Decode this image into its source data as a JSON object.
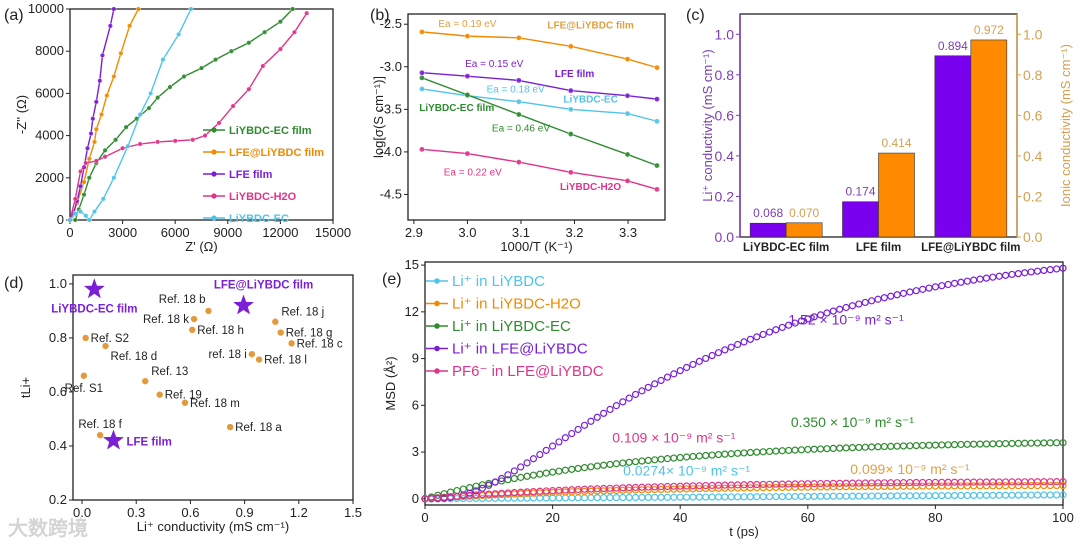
{
  "colors": {
    "purple": "#7a1fd6",
    "orange": "#f08a00",
    "green": "#2e8b2e",
    "pink": "#e0338a",
    "cyan": "#4fc3e8",
    "bar_purple": "#7a00f0",
    "bar_orange": "#ff8a00",
    "label_orange": "#e0a040",
    "axis_purple": "#7b3fb0",
    "axis_orange": "#d4a050"
  },
  "watermark": "大数跨境",
  "chart_data": [
    {
      "panel": "(a)",
      "type": "line",
      "xlabel": "Z' (Ω)",
      "ylabel": "-Z'' (Ω)",
      "xlim": [
        0,
        15000
      ],
      "ylim": [
        0,
        10000
      ],
      "xticks": [
        0,
        3000,
        6000,
        9000,
        12000,
        15000
      ],
      "yticks": [
        0,
        2000,
        4000,
        6000,
        8000,
        10000
      ],
      "legend_position": "lower-right",
      "series": [
        {
          "name": "LiYBDC-EC film",
          "color": "green",
          "points": [
            [
              300,
              0
            ],
            [
              500,
              500
            ],
            [
              800,
              1200
            ],
            [
              1100,
              2000
            ],
            [
              1500,
              2700
            ],
            [
              2000,
              3300
            ],
            [
              2600,
              3800
            ],
            [
              3200,
              4400
            ],
            [
              3800,
              4800
            ],
            [
              4500,
              5300
            ],
            [
              5000,
              5800
            ],
            [
              5700,
              6300
            ],
            [
              6500,
              6800
            ],
            [
              7500,
              7200
            ],
            [
              8300,
              7600
            ],
            [
              9200,
              8000
            ],
            [
              10200,
              8400
            ],
            [
              11100,
              8900
            ],
            [
              12000,
              9400
            ],
            [
              12700,
              10000
            ]
          ]
        },
        {
          "name": "LFE@LiYBDC film",
          "color": "orange",
          "points": [
            [
              0,
              0
            ],
            [
              400,
              800
            ],
            [
              800,
              1800
            ],
            [
              1100,
              2900
            ],
            [
              1400,
              3700
            ],
            [
              1500,
              4300
            ],
            [
              1800,
              5000
            ],
            [
              2100,
              5900
            ],
            [
              2500,
              6800
            ],
            [
              2900,
              7900
            ],
            [
              3400,
              9200
            ],
            [
              3900,
              10000
            ]
          ]
        },
        {
          "name": "LFE film",
          "color": "purple",
          "points": [
            [
              0,
              0
            ],
            [
              200,
              300
            ],
            [
              400,
              900
            ],
            [
              600,
              1600
            ],
            [
              800,
              2500
            ],
            [
              1000,
              3400
            ],
            [
              1200,
              4100
            ],
            [
              1300,
              4800
            ],
            [
              1500,
              5600
            ],
            [
              1700,
              6600
            ],
            [
              1850,
              7800
            ],
            [
              2300,
              9200
            ],
            [
              2500,
              10000
            ]
          ]
        },
        {
          "name": "LiYBDC-H2O",
          "color": "pink",
          "points": [
            [
              0,
              0
            ],
            [
              300,
              1000
            ],
            [
              600,
              2300
            ],
            [
              900,
              2700
            ],
            [
              1500,
              2800
            ],
            [
              2000,
              3000
            ],
            [
              3000,
              3400
            ],
            [
              4000,
              3600
            ],
            [
              5000,
              3700
            ],
            [
              6000,
              3750
            ],
            [
              7000,
              3800
            ],
            [
              7700,
              4000
            ],
            [
              8500,
              4600
            ],
            [
              9300,
              5400
            ],
            [
              10200,
              6200
            ],
            [
              11000,
              7300
            ],
            [
              12000,
              8100
            ],
            [
              12800,
              8900
            ],
            [
              13500,
              9800
            ]
          ]
        },
        {
          "name": "LiYBDC-EC",
          "color": "cyan",
          "points": [
            [
              0,
              0
            ],
            [
              300,
              300
            ],
            [
              600,
              400
            ],
            [
              900,
              200
            ],
            [
              1100,
              0
            ],
            [
              1400,
              400
            ],
            [
              1900,
              1000
            ],
            [
              2500,
              2000
            ],
            [
              3300,
              3500
            ],
            [
              4000,
              5000
            ],
            [
              4600,
              6000
            ],
            [
              5300,
              7600
            ],
            [
              6200,
              8800
            ],
            [
              6900,
              10000
            ]
          ]
        }
      ]
    },
    {
      "panel": "(b)",
      "type": "line",
      "xlabel": "1000/T (K⁻¹)",
      "ylabel": "log[σ(S cm⁻¹)]",
      "xlim": [
        2.889,
        3.369
      ],
      "ylim": [
        -4.8,
        -2.38
      ],
      "xticks": [
        2.9,
        3.0,
        3.1,
        3.2,
        3.3
      ],
      "yticks": [
        -2.5,
        -3.0,
        -3.5,
        -4.0,
        -4.5
      ],
      "x": [
        2.915,
        3.0,
        3.096,
        3.193,
        3.299,
        3.354
      ],
      "series": [
        {
          "name": "LFE@LiYBDC film",
          "color": "orange",
          "values": [
            -2.59,
            -2.64,
            -2.66,
            -2.76,
            -2.91,
            -3.01
          ]
        },
        {
          "name": "LFE film",
          "color": "purple",
          "values": [
            -3.07,
            -3.11,
            -3.16,
            -3.28,
            -3.34,
            -3.38
          ]
        },
        {
          "name": "LiYBDC-EC",
          "color": "cyan",
          "values": [
            -3.26,
            -3.34,
            -3.41,
            -3.5,
            -3.55,
            -3.64
          ]
        },
        {
          "name": "LiYBDC-EC film",
          "color": "green",
          "values": [
            -3.13,
            -3.33,
            -3.56,
            -3.79,
            -4.03,
            -4.16
          ]
        },
        {
          "name": "LiYBDC-H2O",
          "color": "pink",
          "values": [
            -3.97,
            -4.02,
            -4.12,
            -4.24,
            -4.34,
            -4.44
          ]
        }
      ],
      "annotations": [
        {
          "text": "Ea = 0.19 eV",
          "color": "label_orange",
          "at": [
            3.0,
            -2.53
          ]
        },
        {
          "text": "LFE@LiYBDC film",
          "color": "label_orange",
          "at": [
            3.23,
            -2.55
          ],
          "bold": true
        },
        {
          "text": "Ea = 0.15 eV",
          "color": "purple",
          "at": [
            3.05,
            -3.0
          ]
        },
        {
          "text": "LFE film",
          "color": "purple",
          "at": [
            3.2,
            -3.12
          ],
          "bold": true
        },
        {
          "text": "Ea = 0.18 eV",
          "color": "cyan",
          "at": [
            3.09,
            -3.3
          ]
        },
        {
          "text": "LiYBDC-EC",
          "color": "cyan",
          "at": [
            3.23,
            -3.42
          ],
          "bold": true
        },
        {
          "text": "LiYBDC-EC film",
          "color": "green",
          "at": [
            2.98,
            -3.52
          ],
          "bold": true
        },
        {
          "text": "Ea = 0.46 eV",
          "color": "green",
          "at": [
            3.1,
            -3.76
          ]
        },
        {
          "text": "Ea = 0.22 eV",
          "color": "pink",
          "at": [
            3.01,
            -4.28
          ]
        },
        {
          "text": "LiYBDC-H2O",
          "color": "pink",
          "at": [
            3.23,
            -4.45
          ],
          "bold": true
        }
      ]
    },
    {
      "panel": "(c)",
      "type": "bar",
      "categories": [
        "LiYBDC-EC film",
        "LFE film",
        "LFE@LiYBDC film"
      ],
      "ylabel": "Li⁺ conductivity (mS cm⁻¹)",
      "y2label": "Ionic conductivity (mS cm⁻¹)",
      "ylim": [
        0,
        1.1
      ],
      "yticks": [
        0.0,
        0.2,
        0.4,
        0.6,
        0.8,
        1.0
      ],
      "series": [
        {
          "name": "Li⁺ conductivity",
          "color": "bar_purple",
          "label_color": "axis_purple",
          "values": [
            0.068,
            0.174,
            0.894
          ],
          "labels": [
            "0.068",
            "0.174",
            "0.894"
          ]
        },
        {
          "name": "Ionic conductivity",
          "color": "bar_orange",
          "label_color": "axis_orange",
          "values": [
            0.07,
            0.414,
            0.972
          ],
          "labels": [
            "0.070",
            "0.414",
            "0.972"
          ]
        }
      ]
    },
    {
      "panel": "(d)",
      "type": "scatter",
      "xlabel": "Li⁺ conductivity (mS cm⁻¹)",
      "ylabel": "tLi+",
      "xlim": [
        -0.05,
        1.5
      ],
      "ylim": [
        0.2,
        1.033
      ],
      "xticks": [
        0.0,
        0.3,
        0.6,
        0.9,
        1.2,
        1.5
      ],
      "yticks": [
        0.2,
        0.4,
        0.6,
        0.8,
        1.0
      ],
      "refs": [
        {
          "label": "Ref. S2",
          "x": 0.02,
          "y": 0.8,
          "pos": "right"
        },
        {
          "label": "Ref. 18 d",
          "x": 0.13,
          "y": 0.77,
          "pos": "below-right"
        },
        {
          "label": "Ref. S1",
          "x": 0.01,
          "y": 0.66,
          "pos": "below"
        },
        {
          "label": "Ref. 13",
          "x": 0.35,
          "y": 0.64,
          "pos": "above-right"
        },
        {
          "label": "Ref. 19",
          "x": 0.43,
          "y": 0.59,
          "pos": "right"
        },
        {
          "label": "Ref. 18 m",
          "x": 0.57,
          "y": 0.56,
          "pos": "right"
        },
        {
          "label": "Ref. 18 f",
          "x": 0.1,
          "y": 0.44,
          "pos": "above"
        },
        {
          "label": "Ref. 18 a",
          "x": 0.82,
          "y": 0.47,
          "pos": "right"
        },
        {
          "label": "Ref. 18 b",
          "x": 0.7,
          "y": 0.9,
          "pos": "above-left"
        },
        {
          "label": "Ref. 18 k",
          "x": 0.62,
          "y": 0.87,
          "pos": "left"
        },
        {
          "label": "Ref. 18 h",
          "x": 0.61,
          "y": 0.83,
          "pos": "right"
        },
        {
          "label": "ref. 18 i",
          "x": 0.94,
          "y": 0.74,
          "pos": "left"
        },
        {
          "label": "Ref. 18 l",
          "x": 0.98,
          "y": 0.72,
          "pos": "right"
        },
        {
          "label": "Ref. 18 j",
          "x": 1.07,
          "y": 0.86,
          "pos": "above-right"
        },
        {
          "label": "Ref. 18 g",
          "x": 1.1,
          "y": 0.82,
          "pos": "right"
        },
        {
          "label": "Ref. 18 c",
          "x": 1.16,
          "y": 0.78,
          "pos": "right"
        }
      ],
      "stars": [
        {
          "label": "LiYBDC-EC film",
          "x": 0.068,
          "y": 0.98,
          "pos": "below"
        },
        {
          "label": "LFE@LiYBDC film",
          "x": 0.894,
          "y": 0.92,
          "pos": "above"
        },
        {
          "label": "LFE film",
          "x": 0.174,
          "y": 0.42,
          "pos": "right"
        }
      ]
    },
    {
      "panel": "(e)",
      "type": "line",
      "xlabel": "t (ps)",
      "ylabel": "MSD (Å²)",
      "xlim": [
        0,
        100
      ],
      "ylim": [
        -0.4,
        15.2
      ],
      "xticks": [
        0,
        20,
        40,
        60,
        80,
        100
      ],
      "yticks": [
        0,
        3,
        6,
        9,
        12,
        15
      ],
      "legend_position": "top-left",
      "series": [
        {
          "name": "Li⁺ in LiYBDC",
          "color": "cyan",
          "final": 0.25,
          "shape": "linear"
        },
        {
          "name": "Li⁺ in LiYBDC-H2O",
          "color": "orange",
          "final": 0.85,
          "shape": "sat"
        },
        {
          "name": "Li⁺ in LiYBDC-EC",
          "color": "green",
          "final": 3.6,
          "shape": "sat"
        },
        {
          "name": "Li⁺ in LFE@LiYBDC",
          "color": "purple",
          "final": 14.8,
          "shape": "sigmoid"
        },
        {
          "name": "PF6⁻ in LFE@LiYBDC",
          "color": "pink",
          "final": 1.1,
          "shape": "sat"
        }
      ],
      "annotations": [
        {
          "text": "1.52 × 10⁻⁹ m² s⁻¹",
          "color": "purple",
          "at": [
            66,
            11.2
          ]
        },
        {
          "text": "0.350 × 10⁻⁹ m² s⁻¹",
          "color": "green",
          "at": [
            67,
            4.6
          ]
        },
        {
          "text": "0.109 × 10⁻⁹ m² s⁻¹",
          "color": "pink",
          "at": [
            39,
            3.6
          ]
        },
        {
          "text": "0.0274× 10⁻⁹ m² s⁻¹",
          "color": "cyan",
          "at": [
            41,
            1.5
          ]
        },
        {
          "text": "0.099× 10⁻⁹ m² s⁻¹",
          "color": "label_orange",
          "at": [
            76,
            1.6
          ]
        }
      ]
    }
  ]
}
